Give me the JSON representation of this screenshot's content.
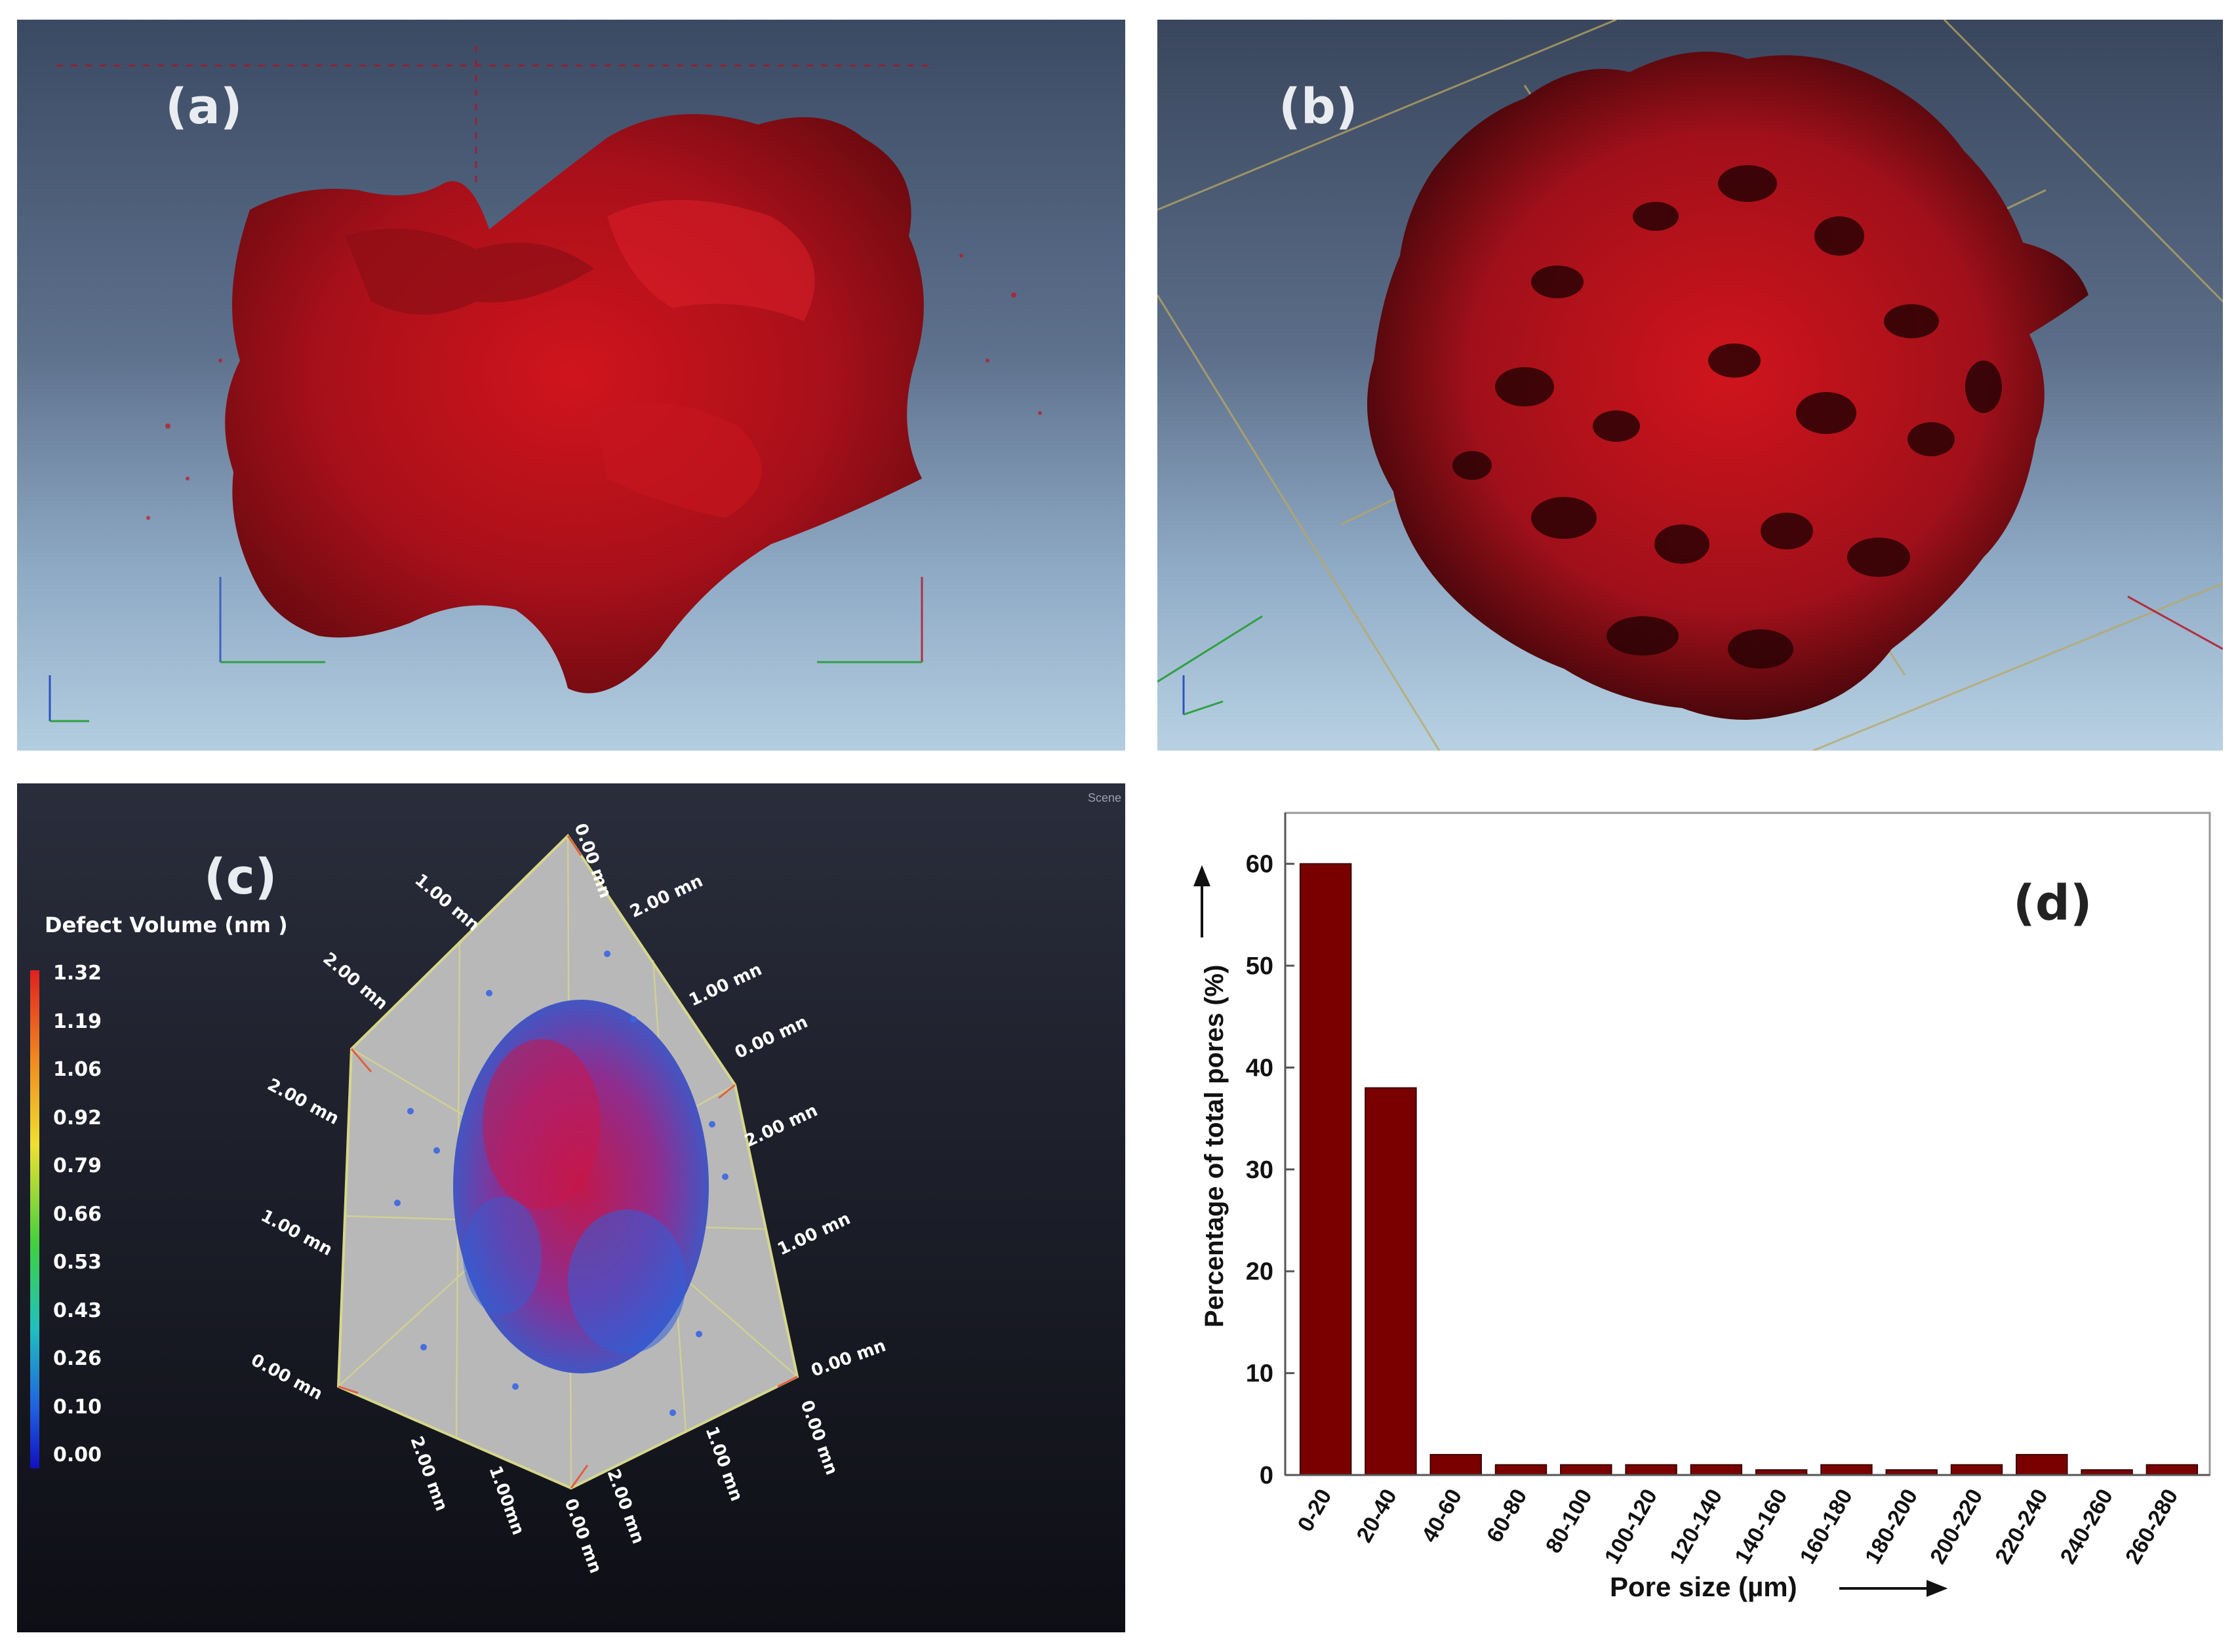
{
  "panels": {
    "a": {
      "label": "(a)"
    },
    "b": {
      "label": "(b)"
    },
    "c": {
      "label": "(c)",
      "scene_tag": "Scene",
      "legend_title": "Defect Volume (nm )",
      "legend_ticks": [
        "1.32",
        "1.19",
        "1.06",
        "0.92",
        "0.79",
        "0.66",
        "0.53",
        "0.43",
        "0.26",
        "0.10",
        "0.00"
      ],
      "dimension_labels": [
        "0.00 mn",
        "1.00 mn",
        "2.00 mn",
        "2.00 mn",
        "1.00 mn",
        "0.00 mn",
        "2.00 mn",
        "2.00 mn",
        "1.00 mn",
        "1.00 mn",
        "0.00 mn",
        "0.00 mn",
        "0.00 mn",
        "2.00 mn",
        "1.00mn",
        "0.00 mn",
        "2.00 mn",
        "1.00 mn",
        "0.00 mn"
      ]
    },
    "d": {
      "label": "(d)"
    }
  },
  "chart_data": {
    "type": "bar",
    "categories": [
      "0-20",
      "20-40",
      "40-60",
      "60-80",
      "80-100",
      "100-120",
      "120-140",
      "140-160",
      "160-180",
      "180-200",
      "200-220",
      "220-240",
      "240-260",
      "260-280"
    ],
    "values": [
      60,
      38,
      2,
      1,
      1,
      1,
      1,
      0.5,
      1,
      0.5,
      1,
      2,
      0.5,
      1
    ],
    "xlabel": "Pore size (µm)",
    "ylabel": "Percentage of total pores (%)",
    "ylim": [
      0,
      65
    ],
    "yticks": [
      0,
      10,
      20,
      30,
      40,
      50,
      60
    ],
    "bar_color": "#7a0000",
    "grid": false
  }
}
